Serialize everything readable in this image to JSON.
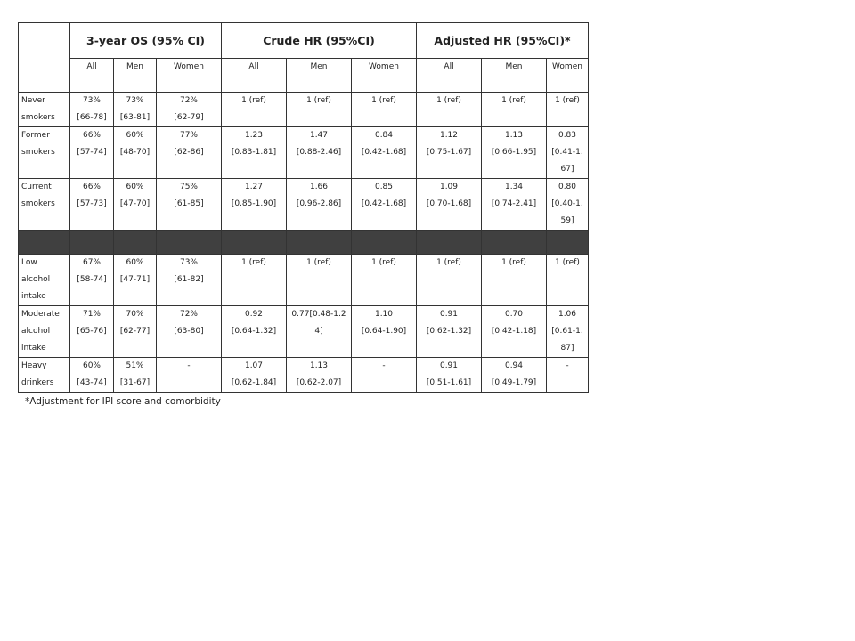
{
  "table": {
    "groups": [
      "3-year OS (95% CI)",
      "Crude HR (95%CI)",
      "Adjusted HR (95%CI)*"
    ],
    "subheaders": [
      "All",
      "Men",
      "Women",
      "All",
      "Men",
      "Women",
      "All",
      "Men",
      "Women"
    ],
    "rows": [
      {
        "label": "Never smokers",
        "cells": [
          [
            "73%",
            "[66-78]"
          ],
          [
            "73%",
            "[63-81]"
          ],
          [
            "72%",
            "[62-79]"
          ],
          [
            "1 (ref)"
          ],
          [
            "1 (ref)"
          ],
          [
            "1 (ref)"
          ],
          [
            "1 (ref)"
          ],
          [
            "1 (ref)"
          ],
          [
            "1 (ref)"
          ]
        ]
      },
      {
        "label": "Former smokers",
        "cells": [
          [
            "66%",
            "[57-74]"
          ],
          [
            "60%",
            "[48-70]"
          ],
          [
            "77%",
            "[62-86]"
          ],
          [
            "1.23",
            "[0.83-1.81]"
          ],
          [
            "1.47",
            "[0.88-2.46]"
          ],
          [
            "0.84",
            "[0.42-1.68]"
          ],
          [
            "1.12",
            "[0.75-1.67]"
          ],
          [
            "1.13",
            "[0.66-1.95]"
          ],
          [
            "0.83",
            "[0.41-1.67]"
          ]
        ]
      },
      {
        "label": "Current smokers",
        "cells": [
          [
            "66%",
            "[57-73]"
          ],
          [
            "60%",
            "[47-70]"
          ],
          [
            "75%",
            "[61-85]"
          ],
          [
            "1.27",
            "[0.85-1.90]"
          ],
          [
            "1.66",
            "[0.96-2.86]"
          ],
          [
            "0.85",
            "[0.42-1.68]"
          ],
          [
            "1.09",
            "[0.70-1.68]"
          ],
          [
            "1.34",
            "[0.74-2.41]"
          ],
          [
            "0.80",
            "[0.40-1.59]"
          ]
        ]
      },
      {
        "label": "Low alcohol intake",
        "cells": [
          [
            "67%",
            "[58-74]"
          ],
          [
            "60%",
            "[47-71]"
          ],
          [
            "73%",
            "[61-82]"
          ],
          [
            "1 (ref)"
          ],
          [
            "1 (ref)"
          ],
          [
            "1 (ref)"
          ],
          [
            "1 (ref)"
          ],
          [
            "1 (ref)"
          ],
          [
            "1 (ref)"
          ]
        ]
      },
      {
        "label": "Moderate alcohol intake",
        "cells": [
          [
            "71%",
            "[65-76]"
          ],
          [
            "70%",
            "[62-77]"
          ],
          [
            "72%",
            "[63-80]"
          ],
          [
            "0.92",
            "[0.64-1.32]"
          ],
          [
            "0.77[0.48-1.24]"
          ],
          [
            "1.10",
            "[0.64-1.90]"
          ],
          [
            "0.91",
            "[0.62-1.32]"
          ],
          [
            "0.70",
            "[0.42-1.18]"
          ],
          [
            "1.06",
            "[0.61-1.87]"
          ]
        ]
      },
      {
        "label": "Heavy drinkers",
        "cells": [
          [
            "60%",
            "[43-74]"
          ],
          [
            "51%",
            "[31-67]"
          ],
          [
            "-"
          ],
          [
            "1.07",
            "[0.62-1.84]"
          ],
          [
            "1.13",
            "[0.62-2.07]"
          ],
          [
            "-"
          ],
          [
            "0.91",
            "[0.51-1.61]"
          ],
          [
            "0.94",
            "[0.49-1.79]"
          ],
          [
            "-"
          ]
        ]
      }
    ],
    "footnote": "*Adjustment for IPI score and comorbidity"
  }
}
